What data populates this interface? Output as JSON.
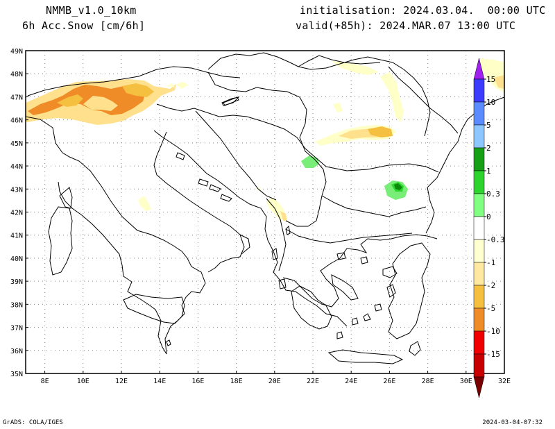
{
  "header": {
    "model": "NMMB_v1.0_10km",
    "field": "6h Acc.Snow [cm/6h]",
    "init": "initialisation: 2024.03.04.  00:00 UTC",
    "valid": "valid(+85h): 2024.MAR.07 13:00 UTC"
  },
  "footer": {
    "left": "GrADS: COLA/IGES",
    "right": "2024-03-04-07:32"
  },
  "axes": {
    "lat_labels": [
      "49N",
      "48N",
      "47N",
      "46N",
      "45N",
      "44N",
      "43N",
      "42N",
      "41N",
      "40N",
      "39N",
      "38N",
      "37N",
      "36N",
      "35N"
    ],
    "lon_labels": [
      "8E",
      "10E",
      "12E",
      "14E",
      "16E",
      "18E",
      "20E",
      "22E",
      "24E",
      "26E",
      "28E",
      "30E",
      "32E"
    ]
  },
  "colorbar": {
    "labels": [
      "15",
      "10",
      "5",
      "2",
      "1",
      "0.3",
      "0",
      "-0.3",
      "-1",
      "-2",
      "-5",
      "-10",
      "-15"
    ],
    "colors": [
      "#a020f0",
      "#3c3cff",
      "#5a8cff",
      "#8cc8ff",
      "#16a016",
      "#2dd42d",
      "#80ff80",
      "#ffffff",
      "#ffffd0",
      "#ffe8a0",
      "#f5c040",
      "#f08c28",
      "#f00000",
      "#c80000",
      "#780000"
    ]
  },
  "map_colors": {
    "light_yellow": "#ffffc8",
    "yellow": "#ffe08c",
    "gold": "#f5c040",
    "orange": "#f08c28",
    "light_green": "#78ee78",
    "green": "#2dd42d",
    "dark_green": "#0a8c0a"
  }
}
